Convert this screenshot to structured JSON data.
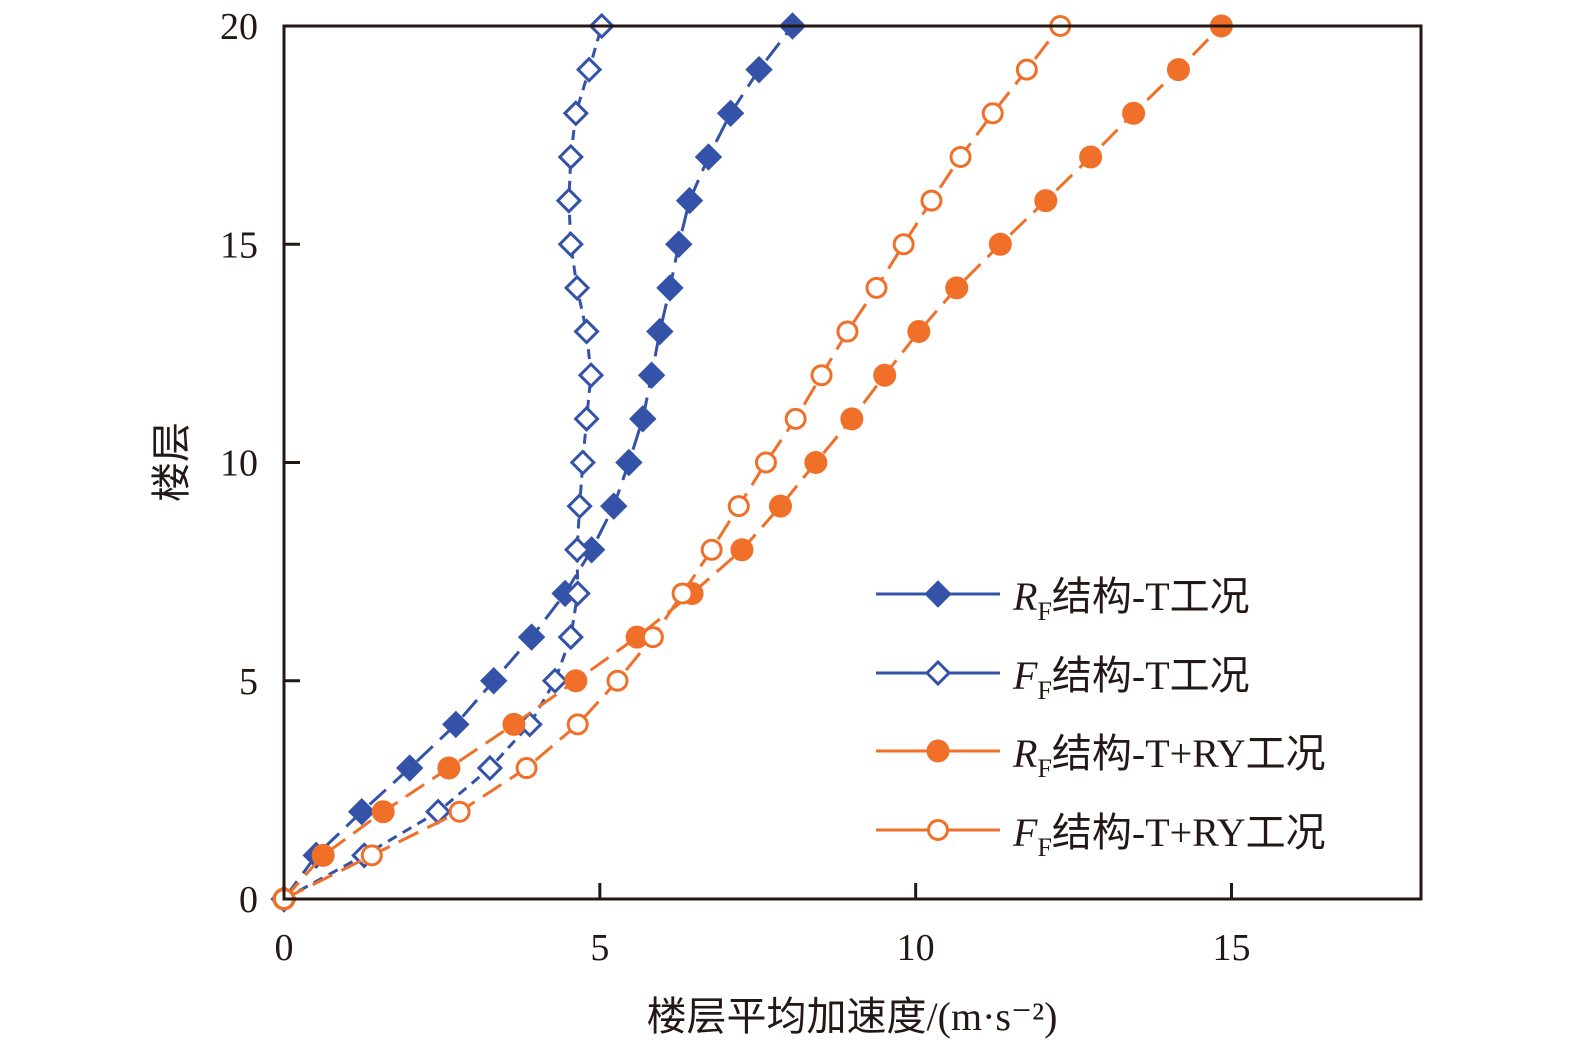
{
  "chart_data": {
    "type": "line",
    "title": "",
    "xlabel": "楼层平均加速度/(m·s⁻²)",
    "ylabel": "楼层",
    "xlim": [
      0,
      18
    ],
    "ylim": [
      0,
      20
    ],
    "xticks": [
      0,
      5,
      10,
      15
    ],
    "yticks": [
      0,
      5,
      10,
      15,
      20
    ],
    "grid": false,
    "legend_position": "right",
    "y": [
      0,
      1,
      2,
      3,
      4,
      5,
      6,
      7,
      8,
      9,
      10,
      11,
      12,
      13,
      14,
      15,
      16,
      17,
      18,
      19,
      20
    ],
    "series": [
      {
        "name": "RF结构-T工况",
        "legend_main": "R",
        "legend_sub": "F",
        "legend_rest": "结构-T工况",
        "color": "#3452a8",
        "marker": "diamond",
        "filled": true,
        "x": [
          0,
          0.51,
          1.23,
          1.99,
          2.72,
          3.32,
          3.92,
          4.45,
          4.87,
          5.22,
          5.46,
          5.68,
          5.82,
          5.95,
          6.11,
          6.25,
          6.42,
          6.72,
          7.07,
          7.52,
          8.05
        ]
      },
      {
        "name": "FF结构-T工况",
        "legend_main": "F",
        "legend_sub": "F",
        "legend_rest": "结构-T工况",
        "color": "#3452a8",
        "marker": "diamond",
        "filled": false,
        "x": [
          0,
          1.27,
          2.44,
          3.26,
          3.89,
          4.29,
          4.54,
          4.65,
          4.64,
          4.68,
          4.73,
          4.79,
          4.86,
          4.79,
          4.64,
          4.54,
          4.51,
          4.54,
          4.62,
          4.83,
          5.03
        ]
      },
      {
        "name": "RF结构-T+RY工况",
        "legend_main": "R",
        "legend_sub": "F",
        "legend_rest": "结构-T+RY工况",
        "color": "#f0702a",
        "marker": "circle",
        "filled": true,
        "x": [
          0,
          0.62,
          1.57,
          2.61,
          3.64,
          4.62,
          5.59,
          6.46,
          7.25,
          7.86,
          8.42,
          8.99,
          9.51,
          10.05,
          10.65,
          11.34,
          12.06,
          12.77,
          13.45,
          14.16,
          14.84
        ]
      },
      {
        "name": "FF结构-T+RY工况",
        "legend_main": "F",
        "legend_sub": "F",
        "legend_rest": "结构-T+RY工况",
        "color": "#f0702a",
        "marker": "circle",
        "filled": false,
        "x": [
          0,
          1.39,
          2.78,
          3.84,
          4.65,
          5.28,
          5.84,
          6.31,
          6.77,
          7.2,
          7.63,
          8.1,
          8.51,
          8.92,
          9.38,
          9.81,
          10.25,
          10.71,
          11.22,
          11.76,
          12.29
        ]
      }
    ]
  }
}
